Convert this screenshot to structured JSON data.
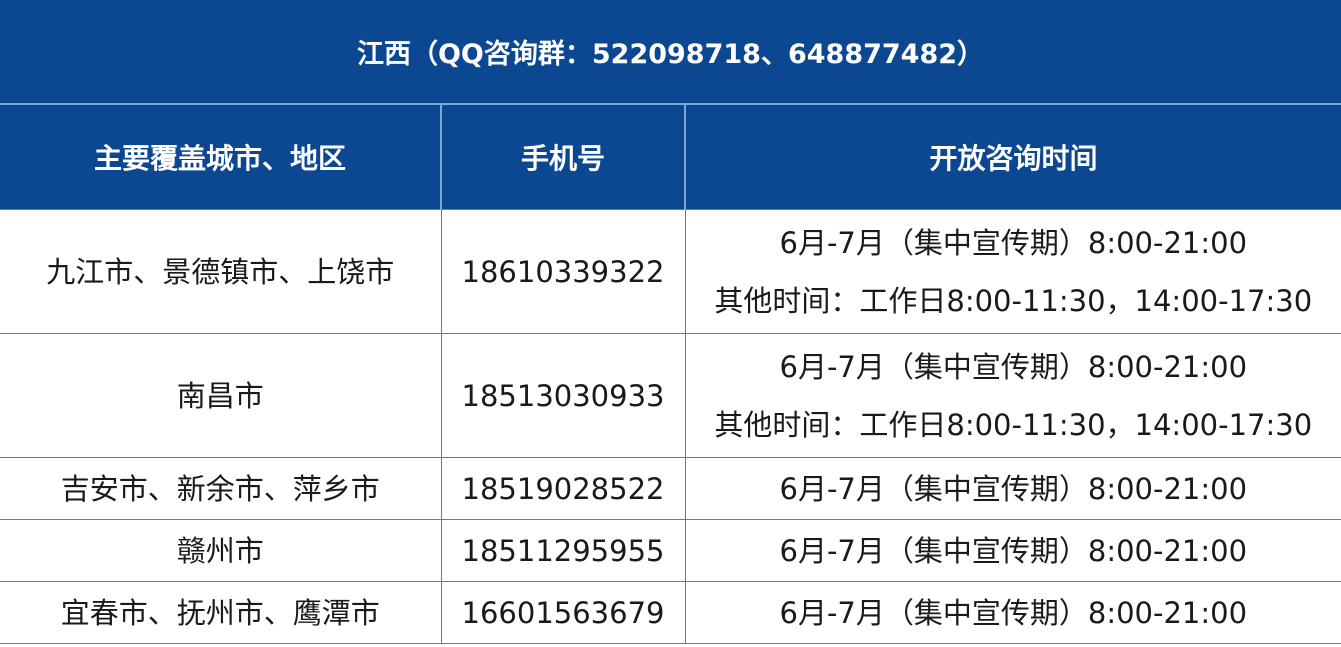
{
  "title": "江西（QQ咨询群：522098718、648877482）",
  "colors": {
    "header_bg": "#0c4791",
    "header_text": "#ffffff"
  },
  "columns": [
    "主要覆盖城市、地区",
    "手机号",
    "开放咨询时间"
  ],
  "rows": [
    {
      "region": "九江市、景德镇市、上饶市",
      "phone": "18610339322",
      "hours": [
        "6月-7月（集中宣传期）8:00-21:00",
        "其他时间：工作日8:00-11:30，14:00-17:30"
      ]
    },
    {
      "region": "南昌市",
      "phone": "18513030933",
      "hours": [
        "6月-7月（集中宣传期）8:00-21:00",
        "其他时间：工作日8:00-11:30，14:00-17:30"
      ]
    },
    {
      "region": "吉安市、新余市、萍乡市",
      "phone": "18519028522",
      "hours": [
        "6月-7月（集中宣传期）8:00-21:00"
      ]
    },
    {
      "region": "赣州市",
      "phone": "18511295955",
      "hours": [
        "6月-7月（集中宣传期）8:00-21:00"
      ]
    },
    {
      "region": "宜春市、抚州市、鹰潭市",
      "phone": "16601563679",
      "hours": [
        "6月-7月（集中宣传期）8:00-21:00"
      ]
    }
  ]
}
